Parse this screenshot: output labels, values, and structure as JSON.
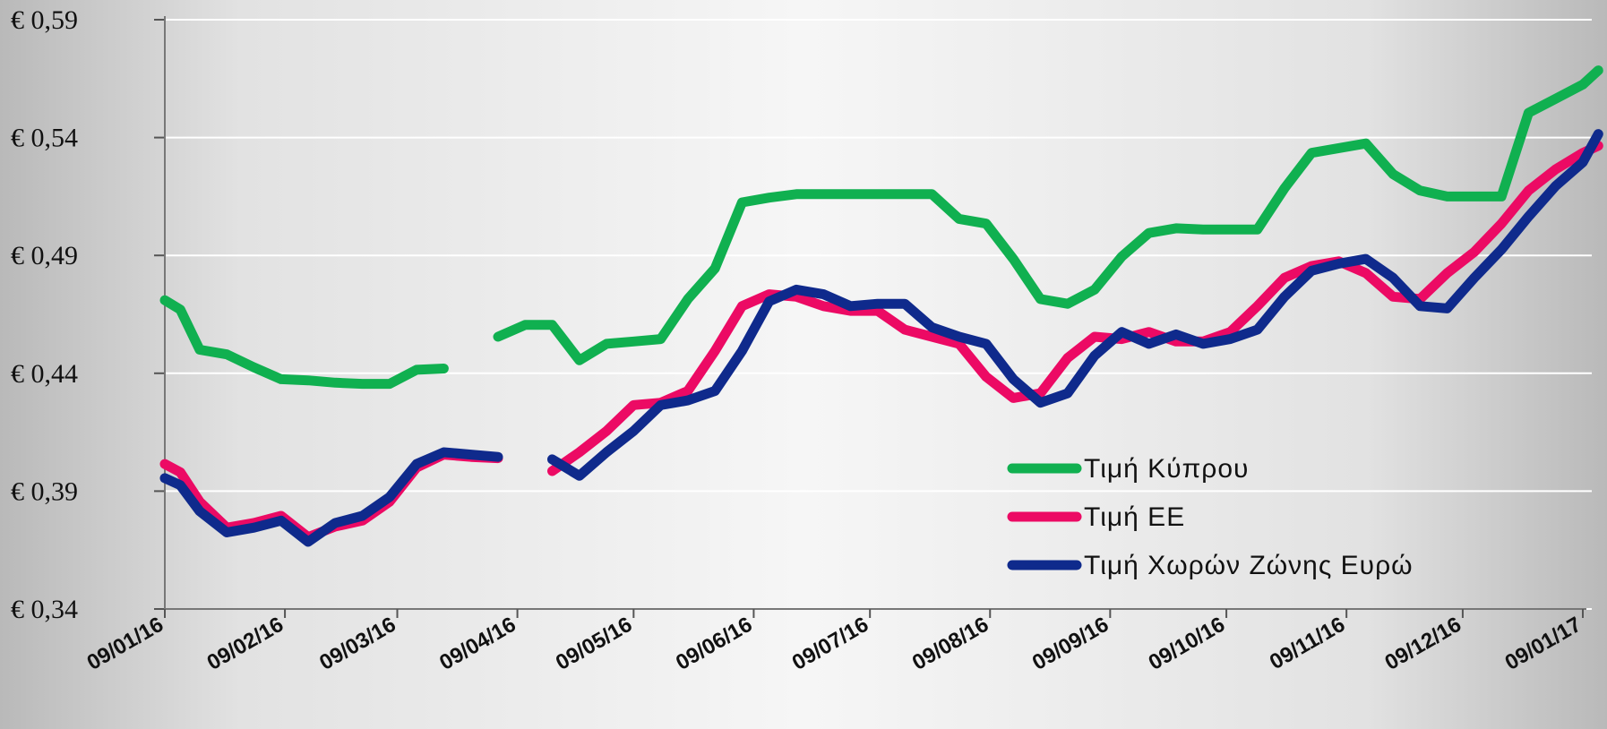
{
  "chart_data": {
    "type": "line",
    "title": "",
    "xlabel": "",
    "ylabel": "",
    "ylim": [
      0.34,
      0.59
    ],
    "y_ticks": [
      "€ 0,59",
      "€ 0,54",
      "€ 0,49",
      "€ 0,44",
      "€ 0,39",
      "€ 0,34"
    ],
    "y_tick_values": [
      0.59,
      0.54,
      0.49,
      0.44,
      0.39,
      0.34
    ],
    "x_ticks": [
      "09/01/16",
      "09/02/16",
      "09/03/16",
      "09/04/16",
      "09/05/16",
      "09/06/16",
      "09/07/16",
      "09/08/16",
      "09/09/16",
      "09/10/16",
      "09/11/16",
      "09/12/16",
      "09/01/17"
    ],
    "x_tick_dates": [
      "2016-01-09",
      "2016-02-09",
      "2016-03-09",
      "2016-04-09",
      "2016-05-09",
      "2016-06-09",
      "2016-07-09",
      "2016-08-09",
      "2016-09-09",
      "2016-10-09",
      "2016-11-09",
      "2016-12-09",
      "2017-01-09"
    ],
    "grid": true,
    "legend_position": "bottom-right",
    "series": [
      {
        "name": "Τιμή Κύπρου",
        "color": "#10b050",
        "points": [
          [
            "2016-01-09",
            0.471
          ],
          [
            "2016-01-13",
            0.467
          ],
          [
            "2016-01-18",
            0.45
          ],
          [
            "2016-01-25",
            0.448
          ],
          [
            "2016-02-01",
            0.4425
          ],
          [
            "2016-02-08",
            0.4375
          ],
          [
            "2016-02-15",
            0.437
          ],
          [
            "2016-02-22",
            0.436
          ],
          [
            "2016-02-29",
            0.4355
          ],
          [
            "2016-03-07",
            0.4355
          ],
          [
            "2016-03-14",
            0.4415
          ],
          [
            "2016-03-21",
            0.442
          ],
          [
            "2016-03-28",
            null
          ],
          [
            "2016-04-04",
            0.4555
          ],
          [
            "2016-04-11",
            0.4605
          ],
          [
            "2016-04-18",
            0.4605
          ],
          [
            "2016-04-25",
            0.4455
          ],
          [
            "2016-05-02",
            0.4525
          ],
          [
            "2016-05-09",
            0.4535
          ],
          [
            "2016-05-16",
            0.4545
          ],
          [
            "2016-05-23",
            0.4715
          ],
          [
            "2016-05-30",
            0.4845
          ],
          [
            "2016-06-06",
            0.5125
          ],
          [
            "2016-06-13",
            0.5145
          ],
          [
            "2016-06-20",
            0.516
          ],
          [
            "2016-06-27",
            0.516
          ],
          [
            "2016-07-04",
            0.516
          ],
          [
            "2016-07-11",
            0.516
          ],
          [
            "2016-07-18",
            0.516
          ],
          [
            "2016-07-25",
            0.516
          ],
          [
            "2016-08-01",
            0.5055
          ],
          [
            "2016-08-08",
            0.5035
          ],
          [
            "2016-08-15",
            0.4885
          ],
          [
            "2016-08-22",
            0.4715
          ],
          [
            "2016-08-29",
            0.4695
          ],
          [
            "2016-09-05",
            0.4755
          ],
          [
            "2016-09-12",
            0.4895
          ],
          [
            "2016-09-19",
            0.4995
          ],
          [
            "2016-09-26",
            0.5015
          ],
          [
            "2016-10-03",
            0.501
          ],
          [
            "2016-10-10",
            0.501
          ],
          [
            "2016-10-17",
            0.501
          ],
          [
            "2016-10-24",
            0.5185
          ],
          [
            "2016-10-31",
            0.5335
          ],
          [
            "2016-11-07",
            0.5355
          ],
          [
            "2016-11-14",
            0.5375
          ],
          [
            "2016-11-21",
            0.5245
          ],
          [
            "2016-11-28",
            0.5175
          ],
          [
            "2016-12-05",
            0.515
          ],
          [
            "2016-12-12",
            0.515
          ],
          [
            "2016-12-19",
            0.515
          ],
          [
            "2016-12-26",
            0.5505
          ],
          [
            "2017-01-02",
            0.5565
          ],
          [
            "2017-01-09",
            0.5625
          ],
          [
            "2017-01-13",
            0.5685
          ]
        ]
      },
      {
        "name": "Τιμή ΕΕ",
        "color": "#ec0a64",
        "points": [
          [
            "2016-01-09",
            0.4015
          ],
          [
            "2016-01-13",
            0.398
          ],
          [
            "2016-01-18",
            0.3855
          ],
          [
            "2016-01-25",
            0.3745
          ],
          [
            "2016-02-01",
            0.3765
          ],
          [
            "2016-02-08",
            0.3795
          ],
          [
            "2016-02-15",
            0.3705
          ],
          [
            "2016-02-22",
            0.375
          ],
          [
            "2016-02-29",
            0.3775
          ],
          [
            "2016-03-07",
            0.3855
          ],
          [
            "2016-03-14",
            0.4
          ],
          [
            "2016-03-21",
            0.4055
          ],
          [
            "2016-03-28",
            0.4045
          ],
          [
            "2016-04-04",
            0.404
          ],
          [
            "2016-04-11",
            null
          ],
          [
            "2016-04-18",
            0.3985
          ],
          [
            "2016-04-25",
            0.4065
          ],
          [
            "2016-05-02",
            0.4155
          ],
          [
            "2016-05-09",
            0.4265
          ],
          [
            "2016-05-16",
            0.4275
          ],
          [
            "2016-05-23",
            0.4325
          ],
          [
            "2016-05-30",
            0.4495
          ],
          [
            "2016-06-06",
            0.4685
          ],
          [
            "2016-06-13",
            0.4735
          ],
          [
            "2016-06-20",
            0.4725
          ],
          [
            "2016-06-27",
            0.4685
          ],
          [
            "2016-07-04",
            0.4665
          ],
          [
            "2016-07-11",
            0.4665
          ],
          [
            "2016-07-18",
            0.4585
          ],
          [
            "2016-07-25",
            0.4555
          ],
          [
            "2016-08-01",
            0.4525
          ],
          [
            "2016-08-08",
            0.4385
          ],
          [
            "2016-08-15",
            0.4295
          ],
          [
            "2016-08-22",
            0.4315
          ],
          [
            "2016-08-29",
            0.4465
          ],
          [
            "2016-09-05",
            0.4555
          ],
          [
            "2016-09-12",
            0.4545
          ],
          [
            "2016-09-19",
            0.4575
          ],
          [
            "2016-09-26",
            0.4535
          ],
          [
            "2016-10-03",
            0.4535
          ],
          [
            "2016-10-10",
            0.4575
          ],
          [
            "2016-10-17",
            0.4685
          ],
          [
            "2016-10-24",
            0.4805
          ],
          [
            "2016-10-31",
            0.4855
          ],
          [
            "2016-11-07",
            0.4875
          ],
          [
            "2016-11-14",
            0.4825
          ],
          [
            "2016-11-21",
            0.4725
          ],
          [
            "2016-11-28",
            0.4715
          ],
          [
            "2016-12-05",
            0.4825
          ],
          [
            "2016-12-12",
            0.4915
          ],
          [
            "2016-12-19",
            0.5035
          ],
          [
            "2016-12-26",
            0.5175
          ],
          [
            "2017-01-02",
            0.5265
          ],
          [
            "2017-01-09",
            0.5335
          ],
          [
            "2017-01-13",
            0.5365
          ]
        ]
      },
      {
        "name": "Τιμή Χωρών  Ζώνης Ευρώ",
        "color": "#0f2a8c",
        "points": [
          [
            "2016-01-09",
            0.3955
          ],
          [
            "2016-01-13",
            0.3925
          ],
          [
            "2016-01-18",
            0.3815
          ],
          [
            "2016-01-25",
            0.3725
          ],
          [
            "2016-02-01",
            0.3745
          ],
          [
            "2016-02-08",
            0.3775
          ],
          [
            "2016-02-15",
            0.3685
          ],
          [
            "2016-02-22",
            0.3765
          ],
          [
            "2016-02-29",
            0.3795
          ],
          [
            "2016-03-07",
            0.3875
          ],
          [
            "2016-03-14",
            0.4015
          ],
          [
            "2016-03-21",
            0.4065
          ],
          [
            "2016-03-28",
            0.4055
          ],
          [
            "2016-04-04",
            0.4045
          ],
          [
            "2016-04-11",
            null
          ],
          [
            "2016-04-18",
            0.4035
          ],
          [
            "2016-04-25",
            0.3965
          ],
          [
            "2016-05-02",
            0.4065
          ],
          [
            "2016-05-09",
            0.4155
          ],
          [
            "2016-05-16",
            0.4265
          ],
          [
            "2016-05-23",
            0.4285
          ],
          [
            "2016-05-30",
            0.4325
          ],
          [
            "2016-06-06",
            0.4495
          ],
          [
            "2016-06-13",
            0.4705
          ],
          [
            "2016-06-20",
            0.4755
          ],
          [
            "2016-06-27",
            0.4735
          ],
          [
            "2016-07-04",
            0.4685
          ],
          [
            "2016-07-11",
            0.4695
          ],
          [
            "2016-07-18",
            0.4695
          ],
          [
            "2016-07-25",
            0.4595
          ],
          [
            "2016-08-01",
            0.4555
          ],
          [
            "2016-08-08",
            0.4525
          ],
          [
            "2016-08-15",
            0.4375
          ],
          [
            "2016-08-22",
            0.4275
          ],
          [
            "2016-08-29",
            0.4315
          ],
          [
            "2016-09-05",
            0.4475
          ],
          [
            "2016-09-12",
            0.4575
          ],
          [
            "2016-09-19",
            0.4525
          ],
          [
            "2016-09-26",
            0.4565
          ],
          [
            "2016-10-03",
            0.4525
          ],
          [
            "2016-10-10",
            0.4545
          ],
          [
            "2016-10-17",
            0.4585
          ],
          [
            "2016-10-24",
            0.4725
          ],
          [
            "2016-10-31",
            0.4835
          ],
          [
            "2016-11-07",
            0.4865
          ],
          [
            "2016-11-14",
            0.4885
          ],
          [
            "2016-11-21",
            0.4805
          ],
          [
            "2016-11-28",
            0.4685
          ],
          [
            "2016-12-05",
            0.4675
          ],
          [
            "2016-12-12",
            0.4805
          ],
          [
            "2016-12-19",
            0.4925
          ],
          [
            "2016-12-26",
            0.5065
          ],
          [
            "2017-01-02",
            0.5195
          ],
          [
            "2017-01-09",
            0.5295
          ],
          [
            "2017-01-13",
            0.5415
          ]
        ]
      }
    ]
  }
}
